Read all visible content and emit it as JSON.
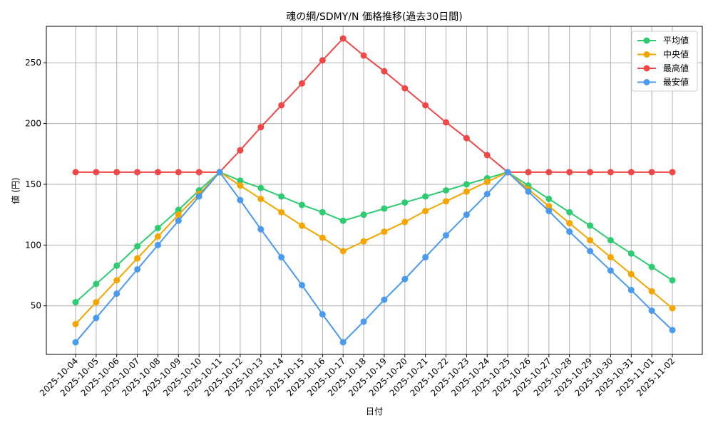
{
  "chart_data": {
    "type": "line",
    "title": "魂の綱/SDMY/N 価格推移(過去30日間)",
    "xlabel": "日付",
    "ylabel": "値 (円)",
    "ylim": [
      10,
      280
    ],
    "yticks": [
      50,
      100,
      150,
      200,
      250
    ],
    "grid": true,
    "legend_position": "top-right",
    "categories": [
      "2025-10-04",
      "2025-10-05",
      "2025-10-06",
      "2025-10-07",
      "2025-10-08",
      "2025-10-09",
      "2025-10-10",
      "2025-10-11",
      "2025-10-12",
      "2025-10-13",
      "2025-10-14",
      "2025-10-15",
      "2025-10-16",
      "2025-10-17",
      "2025-10-18",
      "2025-10-19",
      "2025-10-20",
      "2025-10-21",
      "2025-10-22",
      "2025-10-23",
      "2025-10-24",
      "2025-10-25",
      "2025-10-26",
      "2025-10-27",
      "2025-10-28",
      "2025-10-29",
      "2025-10-30",
      "2025-10-31",
      "2025-11-01",
      "2025-11-02"
    ],
    "series": [
      {
        "name": "平均値",
        "color": "#2ecc71",
        "values": [
          53,
          68,
          83,
          99,
          114,
          129,
          145,
          160,
          153,
          147,
          140,
          133,
          127,
          120,
          125,
          130,
          135,
          140,
          145,
          150,
          155,
          160,
          149,
          138,
          127,
          116,
          104,
          93,
          82,
          71
        ]
      },
      {
        "name": "中央値",
        "color": "#f5a500",
        "values": [
          35,
          53,
          71,
          89,
          107,
          125,
          142,
          160,
          149,
          138,
          127,
          116,
          106,
          95,
          103,
          111,
          119,
          128,
          136,
          144,
          152,
          160,
          146,
          132,
          118,
          104,
          90,
          76,
          62,
          48
        ]
      },
      {
        "name": "最高値",
        "color": "#f04747",
        "values": [
          160,
          160,
          160,
          160,
          160,
          160,
          160,
          160,
          178,
          197,
          215,
          233,
          252,
          270,
          256,
          243,
          229,
          215,
          201,
          188,
          174,
          160,
          160,
          160,
          160,
          160,
          160,
          160,
          160,
          160
        ]
      },
      {
        "name": "最安値",
        "color": "#4a9af0",
        "values": [
          20,
          40,
          60,
          80,
          100,
          120,
          140,
          160,
          137,
          113,
          90,
          67,
          43,
          20,
          37,
          55,
          72,
          90,
          108,
          125,
          142,
          160,
          144,
          128,
          111,
          95,
          79,
          63,
          46,
          30
        ]
      }
    ]
  }
}
